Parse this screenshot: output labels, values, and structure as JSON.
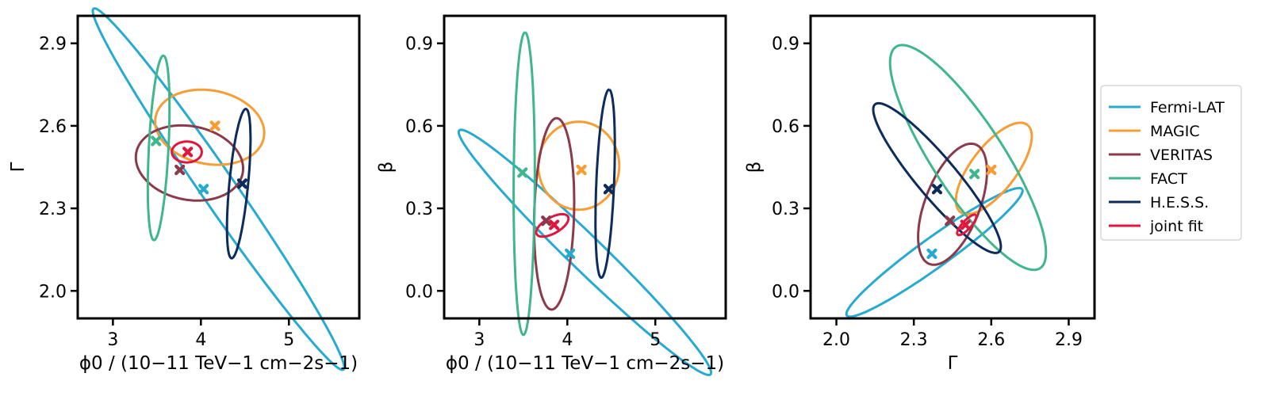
{
  "chart_data": [
    {
      "type": "contour-ellipse",
      "xlabel": "ϕ0 / (10−11 TeV−1 cm−2s−1)",
      "ylabel": "Γ",
      "xlim": [
        2.6,
        5.8
      ],
      "ylim": [
        1.9,
        3.0
      ],
      "xticks": [
        "3",
        "4",
        "5"
      ],
      "xtick_values": [
        3,
        4,
        5
      ],
      "yticks": [
        "2.0",
        "2.3",
        "2.6",
        "2.9"
      ],
      "ytick_values": [
        2.0,
        2.3,
        2.6,
        2.9
      ],
      "series": [
        {
          "name": "Fermi-LAT",
          "best_fit": [
            4.03,
            2.37
          ],
          "contour": {
            "center": [
              4.2,
              2.37
            ],
            "semi_major": 1.57,
            "semi_minor": 0.099,
            "angle_deg": -24.5
          }
        },
        {
          "name": "MAGIC",
          "best_fit": [
            4.16,
            2.6
          ],
          "contour": {
            "center": [
              4.1,
              2.595
            ],
            "semi_major": 0.62,
            "semi_minor": 0.135,
            "angle_deg": -2
          }
        },
        {
          "name": "VERITAS",
          "best_fit": [
            3.76,
            2.44
          ],
          "contour": {
            "center": [
              3.87,
              2.465
            ],
            "semi_major": 0.61,
            "semi_minor": 0.135,
            "angle_deg": -2
          }
        },
        {
          "name": "FACT",
          "best_fit": [
            3.49,
            2.545
          ],
          "contour": {
            "center": [
              3.52,
              2.52
            ],
            "semi_major": 0.34,
            "semi_minor": 0.11,
            "angle_deg": 80
          }
        },
        {
          "name": "H.E.S.S.",
          "best_fit": [
            4.47,
            2.39
          ],
          "contour": {
            "center": [
              4.43,
              2.39
            ],
            "semi_major": 0.285,
            "semi_minor": 0.102,
            "angle_deg": 71
          }
        },
        {
          "name": "joint fit",
          "best_fit": [
            3.85,
            2.505
          ],
          "contour": {
            "center": [
              3.84,
              2.505
            ],
            "semi_major": 0.17,
            "semi_minor": 0.038,
            "angle_deg": 0
          }
        }
      ]
    },
    {
      "type": "contour-ellipse",
      "xlabel": "ϕ0 / (10−11 TeV−1 cm−2s−1)",
      "ylabel": "β",
      "xlim": [
        2.6,
        5.8
      ],
      "ylim": [
        -0.1,
        1.0
      ],
      "xticks": [
        "3",
        "4",
        "5"
      ],
      "xtick_values": [
        3,
        4,
        5
      ],
      "yticks": [
        "0.0",
        "0.3",
        "0.6",
        "0.9"
      ],
      "ytick_values": [
        0.0,
        0.3,
        0.6,
        0.9
      ],
      "series": [
        {
          "name": "Fermi-LAT",
          "best_fit": [
            4.03,
            0.135
          ],
          "contour": {
            "center": [
              4.2,
              0.14
            ],
            "semi_major": 1.5,
            "semi_minor": 0.083,
            "angle_deg": -17
          }
        },
        {
          "name": "MAGIC",
          "best_fit": [
            4.16,
            0.44
          ],
          "contour": {
            "center": [
              4.13,
              0.455
            ],
            "semi_major": 0.46,
            "semi_minor": 0.16,
            "angle_deg": 0
          }
        },
        {
          "name": "VERITAS",
          "best_fit": [
            3.76,
            0.255
          ],
          "contour": {
            "center": [
              3.85,
              0.28
            ],
            "semi_major": 0.35,
            "semi_minor": 0.225,
            "angle_deg": 82
          }
        },
        {
          "name": "FACT",
          "best_fit": [
            3.49,
            0.43
          ],
          "contour": {
            "center": [
              3.51,
              0.39
            ],
            "semi_major": 0.55,
            "semi_minor": 0.12,
            "angle_deg": 89
          }
        },
        {
          "name": "H.E.S.S.",
          "best_fit": [
            4.47,
            0.37
          ],
          "contour": {
            "center": [
              4.43,
              0.39
            ],
            "semi_major": 0.345,
            "semi_minor": 0.1,
            "angle_deg": 82
          }
        },
        {
          "name": "joint fit",
          "best_fit": [
            3.85,
            0.24
          ],
          "contour": {
            "center": [
              3.83,
              0.238
            ],
            "semi_major": 0.185,
            "semi_minor": 0.032,
            "angle_deg": 8
          }
        }
      ]
    },
    {
      "type": "contour-ellipse",
      "xlabel": "Γ",
      "ylabel": "β",
      "xlim": [
        1.9,
        3.0
      ],
      "ylim": [
        -0.1,
        1.0
      ],
      "xticks": [
        "2.0",
        "2.3",
        "2.6",
        "2.9"
      ],
      "xtick_values": [
        2.0,
        2.3,
        2.6,
        2.9
      ],
      "yticks": [
        "0.0",
        "0.3",
        "0.6",
        "0.9"
      ],
      "ytick_values": [
        0.0,
        0.3,
        0.6,
        0.9
      ],
      "series": [
        {
          "name": "Fermi-LAT",
          "best_fit": [
            2.37,
            0.135
          ],
          "contour": {
            "center": [
              2.38,
              0.14
            ],
            "semi_major": 0.41,
            "semi_minor": 0.055,
            "angle_deg": 34
          }
        },
        {
          "name": "MAGIC",
          "best_fit": [
            2.6,
            0.44
          ],
          "contour": {
            "center": [
              2.61,
              0.445
            ],
            "semi_major": 0.205,
            "semi_minor": 0.085,
            "angle_deg": 50
          }
        },
        {
          "name": "VERITAS",
          "best_fit": [
            2.44,
            0.255
          ],
          "contour": {
            "center": [
              2.45,
              0.315
            ],
            "semi_major": 0.235,
            "semi_minor": 0.105,
            "angle_deg": 67
          }
        },
        {
          "name": "FACT",
          "best_fit": [
            2.535,
            0.425
          ],
          "contour": {
            "center": [
              2.51,
              0.485
            ],
            "semi_major": 0.49,
            "semi_minor": 0.135,
            "angle_deg": -55
          }
        },
        {
          "name": "H.E.S.S.",
          "best_fit": [
            2.39,
            0.37
          ],
          "contour": {
            "center": [
              2.39,
              0.41
            ],
            "semi_major": 0.36,
            "semi_minor": 0.075,
            "angle_deg": -48
          }
        },
        {
          "name": "joint fit",
          "best_fit": [
            2.5,
            0.24
          ],
          "contour": {
            "center": [
              2.505,
              0.24
            ],
            "semi_major": 0.05,
            "semi_minor": 0.016,
            "angle_deg": 45
          }
        }
      ]
    }
  ],
  "legend": {
    "placement": "right",
    "entries": [
      {
        "label": "Fermi-LAT",
        "color": "#27aad1"
      },
      {
        "label": "MAGIC",
        "color": "#f89c34"
      },
      {
        "label": "VERITAS",
        "color": "#8b3a4b"
      },
      {
        "label": "FACT",
        "color": "#3fb68b"
      },
      {
        "label": "H.E.S.S.",
        "color": "#0c2c5e"
      },
      {
        "label": "joint fit",
        "color": "#e0163e"
      }
    ]
  }
}
